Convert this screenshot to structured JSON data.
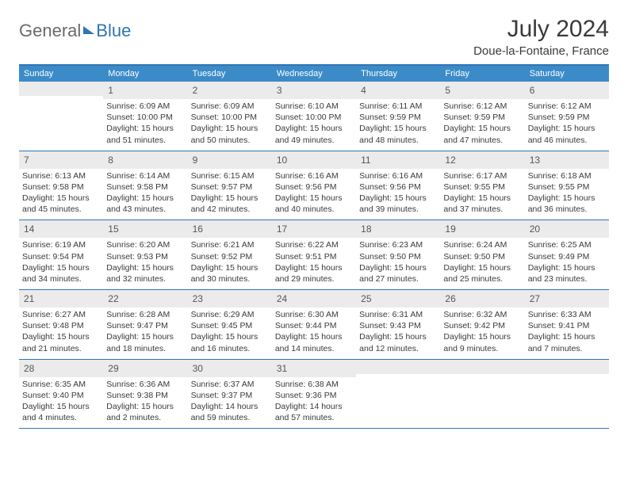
{
  "logo": {
    "part1": "General",
    "part2": "Blue"
  },
  "title": "July 2024",
  "location": "Doue-la-Fontaine, France",
  "colors": {
    "header_bg": "#3b8bc8",
    "accent": "#2e75b6",
    "daynum_bg": "#ebebeb",
    "page_bg": "#ffffff",
    "text": "#3a3a3a"
  },
  "weekdays": [
    "Sunday",
    "Monday",
    "Tuesday",
    "Wednesday",
    "Thursday",
    "Friday",
    "Saturday"
  ],
  "weeks": [
    [
      {
        "day": "",
        "sunrise": "",
        "sunset": "",
        "daylight1": "",
        "daylight2": ""
      },
      {
        "day": "1",
        "sunrise": "Sunrise: 6:09 AM",
        "sunset": "Sunset: 10:00 PM",
        "daylight1": "Daylight: 15 hours",
        "daylight2": "and 51 minutes."
      },
      {
        "day": "2",
        "sunrise": "Sunrise: 6:09 AM",
        "sunset": "Sunset: 10:00 PM",
        "daylight1": "Daylight: 15 hours",
        "daylight2": "and 50 minutes."
      },
      {
        "day": "3",
        "sunrise": "Sunrise: 6:10 AM",
        "sunset": "Sunset: 10:00 PM",
        "daylight1": "Daylight: 15 hours",
        "daylight2": "and 49 minutes."
      },
      {
        "day": "4",
        "sunrise": "Sunrise: 6:11 AM",
        "sunset": "Sunset: 9:59 PM",
        "daylight1": "Daylight: 15 hours",
        "daylight2": "and 48 minutes."
      },
      {
        "day": "5",
        "sunrise": "Sunrise: 6:12 AM",
        "sunset": "Sunset: 9:59 PM",
        "daylight1": "Daylight: 15 hours",
        "daylight2": "and 47 minutes."
      },
      {
        "day": "6",
        "sunrise": "Sunrise: 6:12 AM",
        "sunset": "Sunset: 9:59 PM",
        "daylight1": "Daylight: 15 hours",
        "daylight2": "and 46 minutes."
      }
    ],
    [
      {
        "day": "7",
        "sunrise": "Sunrise: 6:13 AM",
        "sunset": "Sunset: 9:58 PM",
        "daylight1": "Daylight: 15 hours",
        "daylight2": "and 45 minutes."
      },
      {
        "day": "8",
        "sunrise": "Sunrise: 6:14 AM",
        "sunset": "Sunset: 9:58 PM",
        "daylight1": "Daylight: 15 hours",
        "daylight2": "and 43 minutes."
      },
      {
        "day": "9",
        "sunrise": "Sunrise: 6:15 AM",
        "sunset": "Sunset: 9:57 PM",
        "daylight1": "Daylight: 15 hours",
        "daylight2": "and 42 minutes."
      },
      {
        "day": "10",
        "sunrise": "Sunrise: 6:16 AM",
        "sunset": "Sunset: 9:56 PM",
        "daylight1": "Daylight: 15 hours",
        "daylight2": "and 40 minutes."
      },
      {
        "day": "11",
        "sunrise": "Sunrise: 6:16 AM",
        "sunset": "Sunset: 9:56 PM",
        "daylight1": "Daylight: 15 hours",
        "daylight2": "and 39 minutes."
      },
      {
        "day": "12",
        "sunrise": "Sunrise: 6:17 AM",
        "sunset": "Sunset: 9:55 PM",
        "daylight1": "Daylight: 15 hours",
        "daylight2": "and 37 minutes."
      },
      {
        "day": "13",
        "sunrise": "Sunrise: 6:18 AM",
        "sunset": "Sunset: 9:55 PM",
        "daylight1": "Daylight: 15 hours",
        "daylight2": "and 36 minutes."
      }
    ],
    [
      {
        "day": "14",
        "sunrise": "Sunrise: 6:19 AM",
        "sunset": "Sunset: 9:54 PM",
        "daylight1": "Daylight: 15 hours",
        "daylight2": "and 34 minutes."
      },
      {
        "day": "15",
        "sunrise": "Sunrise: 6:20 AM",
        "sunset": "Sunset: 9:53 PM",
        "daylight1": "Daylight: 15 hours",
        "daylight2": "and 32 minutes."
      },
      {
        "day": "16",
        "sunrise": "Sunrise: 6:21 AM",
        "sunset": "Sunset: 9:52 PM",
        "daylight1": "Daylight: 15 hours",
        "daylight2": "and 30 minutes."
      },
      {
        "day": "17",
        "sunrise": "Sunrise: 6:22 AM",
        "sunset": "Sunset: 9:51 PM",
        "daylight1": "Daylight: 15 hours",
        "daylight2": "and 29 minutes."
      },
      {
        "day": "18",
        "sunrise": "Sunrise: 6:23 AM",
        "sunset": "Sunset: 9:50 PM",
        "daylight1": "Daylight: 15 hours",
        "daylight2": "and 27 minutes."
      },
      {
        "day": "19",
        "sunrise": "Sunrise: 6:24 AM",
        "sunset": "Sunset: 9:50 PM",
        "daylight1": "Daylight: 15 hours",
        "daylight2": "and 25 minutes."
      },
      {
        "day": "20",
        "sunrise": "Sunrise: 6:25 AM",
        "sunset": "Sunset: 9:49 PM",
        "daylight1": "Daylight: 15 hours",
        "daylight2": "and 23 minutes."
      }
    ],
    [
      {
        "day": "21",
        "sunrise": "Sunrise: 6:27 AM",
        "sunset": "Sunset: 9:48 PM",
        "daylight1": "Daylight: 15 hours",
        "daylight2": "and 21 minutes."
      },
      {
        "day": "22",
        "sunrise": "Sunrise: 6:28 AM",
        "sunset": "Sunset: 9:47 PM",
        "daylight1": "Daylight: 15 hours",
        "daylight2": "and 18 minutes."
      },
      {
        "day": "23",
        "sunrise": "Sunrise: 6:29 AM",
        "sunset": "Sunset: 9:45 PM",
        "daylight1": "Daylight: 15 hours",
        "daylight2": "and 16 minutes."
      },
      {
        "day": "24",
        "sunrise": "Sunrise: 6:30 AM",
        "sunset": "Sunset: 9:44 PM",
        "daylight1": "Daylight: 15 hours",
        "daylight2": "and 14 minutes."
      },
      {
        "day": "25",
        "sunrise": "Sunrise: 6:31 AM",
        "sunset": "Sunset: 9:43 PM",
        "daylight1": "Daylight: 15 hours",
        "daylight2": "and 12 minutes."
      },
      {
        "day": "26",
        "sunrise": "Sunrise: 6:32 AM",
        "sunset": "Sunset: 9:42 PM",
        "daylight1": "Daylight: 15 hours",
        "daylight2": "and 9 minutes."
      },
      {
        "day": "27",
        "sunrise": "Sunrise: 6:33 AM",
        "sunset": "Sunset: 9:41 PM",
        "daylight1": "Daylight: 15 hours",
        "daylight2": "and 7 minutes."
      }
    ],
    [
      {
        "day": "28",
        "sunrise": "Sunrise: 6:35 AM",
        "sunset": "Sunset: 9:40 PM",
        "daylight1": "Daylight: 15 hours",
        "daylight2": "and 4 minutes."
      },
      {
        "day": "29",
        "sunrise": "Sunrise: 6:36 AM",
        "sunset": "Sunset: 9:38 PM",
        "daylight1": "Daylight: 15 hours",
        "daylight2": "and 2 minutes."
      },
      {
        "day": "30",
        "sunrise": "Sunrise: 6:37 AM",
        "sunset": "Sunset: 9:37 PM",
        "daylight1": "Daylight: 14 hours",
        "daylight2": "and 59 minutes."
      },
      {
        "day": "31",
        "sunrise": "Sunrise: 6:38 AM",
        "sunset": "Sunset: 9:36 PM",
        "daylight1": "Daylight: 14 hours",
        "daylight2": "and 57 minutes."
      },
      {
        "day": "",
        "sunrise": "",
        "sunset": "",
        "daylight1": "",
        "daylight2": ""
      },
      {
        "day": "",
        "sunrise": "",
        "sunset": "",
        "daylight1": "",
        "daylight2": ""
      },
      {
        "day": "",
        "sunrise": "",
        "sunset": "",
        "daylight1": "",
        "daylight2": ""
      }
    ]
  ]
}
